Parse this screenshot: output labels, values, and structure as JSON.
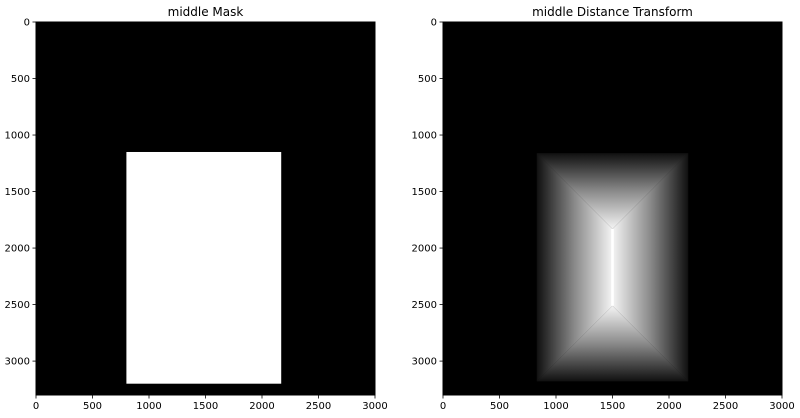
{
  "chart_data": [
    {
      "type": "heatmap",
      "title": "middle Mask",
      "xlim": [
        0,
        3000
      ],
      "ylim": [
        3300,
        0
      ],
      "xticks": [
        0,
        500,
        1000,
        1500,
        2000,
        2500,
        3000
      ],
      "yticks": [
        0,
        500,
        1000,
        1500,
        2000,
        2500,
        3000
      ],
      "colormap": "gray",
      "background_value": 0,
      "rect": {
        "x0": 800,
        "x1": 2170,
        "y0": 1150,
        "y1": 3200,
        "value": 1
      }
    },
    {
      "type": "heatmap",
      "title": "middle Distance Transform",
      "xlim": [
        0,
        3000
      ],
      "ylim": [
        3300,
        0
      ],
      "xticks": [
        0,
        500,
        1000,
        1500,
        2000,
        2500,
        3000
      ],
      "yticks": [
        0,
        500,
        1000,
        1500,
        2000,
        2500,
        3000
      ],
      "colormap": "gray",
      "background_value": 0,
      "rect": {
        "x0": 830,
        "x1": 2170,
        "y0": 1160,
        "y1": 3180
      },
      "peak_ridge": {
        "x": 1500,
        "y0": 1830,
        "y1": 2510
      }
    }
  ]
}
